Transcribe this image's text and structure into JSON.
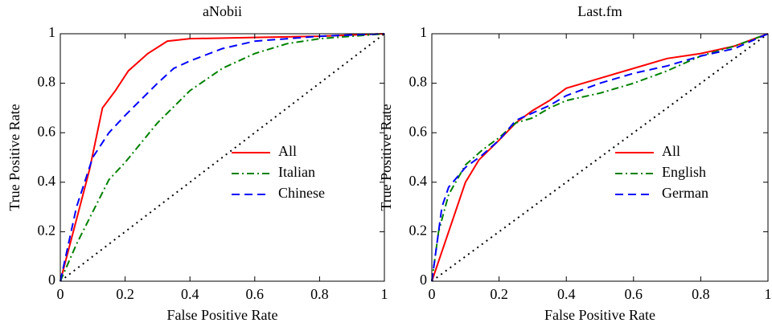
{
  "chart_data": [
    {
      "type": "line",
      "title": "aNobii",
      "x_label": "False Positive Rate",
      "y_label": "True Positive Rate",
      "xlim": [
        0,
        1
      ],
      "ylim": [
        0,
        1
      ],
      "xticks": [
        0,
        0.2,
        0.4,
        0.6,
        0.8,
        1
      ],
      "yticks": [
        0,
        0.2,
        0.4,
        0.6,
        0.8,
        1
      ],
      "legend": "lower right",
      "diagonal": true,
      "series": [
        {
          "name": "All",
          "color": "#ff0000",
          "style": "solid",
          "x": [
            0,
            0.05,
            0.09,
            0.13,
            0.17,
            0.21,
            0.27,
            0.33,
            0.4,
            0.6,
            0.8,
            1
          ],
          "values": [
            0,
            0.25,
            0.45,
            0.7,
            0.77,
            0.85,
            0.92,
            0.97,
            0.98,
            0.985,
            0.99,
            1
          ]
        },
        {
          "name": "Italian",
          "color": "#008000",
          "style": "dashdot",
          "x": [
            0,
            0.05,
            0.1,
            0.15,
            0.2,
            0.3,
            0.4,
            0.5,
            0.6,
            0.7,
            0.8,
            1
          ],
          "values": [
            0,
            0.15,
            0.28,
            0.41,
            0.48,
            0.64,
            0.77,
            0.86,
            0.92,
            0.96,
            0.98,
            1
          ]
        },
        {
          "name": "Chinese",
          "color": "#0000ff",
          "style": "dashed",
          "x": [
            0,
            0.05,
            0.1,
            0.15,
            0.2,
            0.3,
            0.35,
            0.4,
            0.5,
            0.6,
            0.8,
            1
          ],
          "values": [
            0,
            0.3,
            0.5,
            0.6,
            0.67,
            0.8,
            0.86,
            0.89,
            0.94,
            0.97,
            0.99,
            1
          ]
        }
      ]
    },
    {
      "type": "line",
      "title": "Last.fm",
      "x_label": "False Positive Rate",
      "y_label": "True Positive Rate",
      "xlim": [
        0,
        1
      ],
      "ylim": [
        0,
        1
      ],
      "xticks": [
        0,
        0.2,
        0.4,
        0.6,
        0.8,
        1
      ],
      "yticks": [
        0,
        0.2,
        0.4,
        0.6,
        0.8,
        1
      ],
      "legend": "lower right",
      "diagonal": true,
      "series": [
        {
          "name": "All",
          "color": "#ff0000",
          "style": "solid",
          "x": [
            0,
            0.05,
            0.1,
            0.14,
            0.2,
            0.25,
            0.3,
            0.35,
            0.4,
            0.5,
            0.6,
            0.7,
            0.8,
            0.9,
            1
          ],
          "values": [
            0,
            0.2,
            0.4,
            0.49,
            0.57,
            0.64,
            0.69,
            0.73,
            0.78,
            0.82,
            0.86,
            0.9,
            0.92,
            0.95,
            1
          ]
        },
        {
          "name": "English",
          "color": "#008000",
          "style": "dashdot",
          "x": [
            0,
            0.02,
            0.05,
            0.1,
            0.15,
            0.2,
            0.25,
            0.3,
            0.35,
            0.4,
            0.5,
            0.6,
            0.7,
            0.8,
            0.9,
            1
          ],
          "values": [
            0,
            0.2,
            0.35,
            0.47,
            0.53,
            0.58,
            0.64,
            0.66,
            0.7,
            0.73,
            0.76,
            0.8,
            0.85,
            0.91,
            0.95,
            1
          ]
        },
        {
          "name": "German",
          "color": "#0000ff",
          "style": "dashed",
          "x": [
            0,
            0.03,
            0.05,
            0.1,
            0.15,
            0.2,
            0.25,
            0.3,
            0.35,
            0.4,
            0.5,
            0.6,
            0.7,
            0.8,
            0.9,
            1
          ],
          "values": [
            0,
            0.3,
            0.38,
            0.46,
            0.51,
            0.57,
            0.65,
            0.68,
            0.71,
            0.75,
            0.8,
            0.84,
            0.87,
            0.91,
            0.94,
            1
          ]
        }
      ]
    }
  ]
}
